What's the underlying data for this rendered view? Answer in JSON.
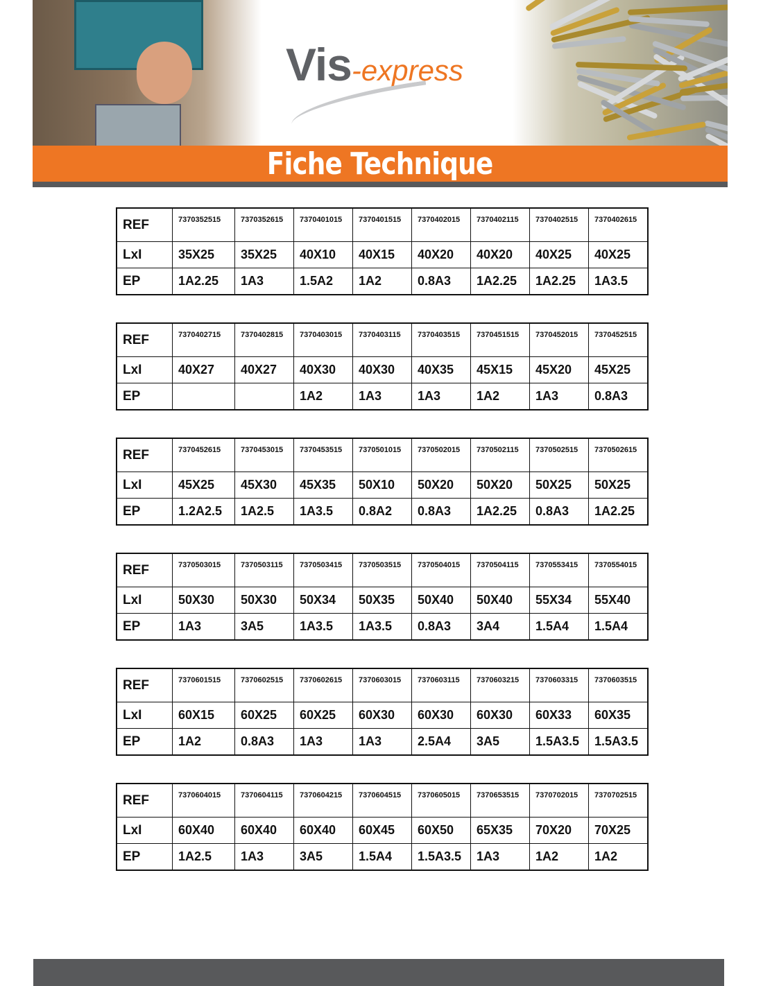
{
  "header": {
    "logo_vis": "Vis",
    "logo_express": "-express",
    "title": "Fiche Technique",
    "colors": {
      "orange": "#ee7623",
      "grey": "#58595b"
    }
  },
  "row_labels": [
    "REF",
    "LxI",
    "EP"
  ],
  "tables": [
    {
      "ref": [
        "7370352515",
        "7370352615",
        "7370401015",
        "7370401515",
        "7370402015",
        "7370402115",
        "7370402515",
        "7370402615"
      ],
      "lxl": [
        "35X25",
        "35X25",
        "40X10",
        "40X15",
        "40X20",
        "40X20",
        "40X25",
        "40X25"
      ],
      "ep": [
        "1A2.25",
        "1A3",
        "1.5A2",
        "1A2",
        "0.8A3",
        "1A2.25",
        "1A2.25",
        "1A3.5"
      ]
    },
    {
      "ref": [
        "7370402715",
        "7370402815",
        "7370403015",
        "7370403115",
        "7370403515",
        "7370451515",
        "7370452015",
        "7370452515"
      ],
      "lxl": [
        "40X27",
        "40X27",
        "40X30",
        "40X30",
        "40X35",
        "45X15",
        "45X20",
        "45X25"
      ],
      "ep": [
        "",
        "",
        "1A2",
        "1A3",
        "1A3",
        "1A2",
        "1A3",
        "0.8A3"
      ]
    },
    {
      "ref": [
        "7370452615",
        "7370453015",
        "7370453515",
        "7370501015",
        "7370502015",
        "7370502115",
        "7370502515",
        "7370502615"
      ],
      "lxl": [
        "45X25",
        "45X30",
        "45X35",
        "50X10",
        "50X20",
        "50X20",
        "50X25",
        "50X25"
      ],
      "ep": [
        "1.2A2.5",
        "1A2.5",
        "1A3.5",
        "0.8A2",
        "0.8A3",
        "1A2.25",
        "0.8A3",
        "1A2.25"
      ]
    },
    {
      "ref": [
        "7370503015",
        "7370503115",
        "7370503415",
        "7370503515",
        "7370504015",
        "7370504115",
        "7370553415",
        "7370554015"
      ],
      "lxl": [
        "50X30",
        "50X30",
        "50X34",
        "50X35",
        "50X40",
        "50X40",
        "55X34",
        "55X40"
      ],
      "ep": [
        "1A3",
        "3A5",
        "1A3.5",
        "1A3.5",
        "0.8A3",
        "3A4",
        "1.5A4",
        "1.5A4"
      ]
    },
    {
      "ref": [
        "7370601515",
        "7370602515",
        "7370602615",
        "7370603015",
        "7370603115",
        "7370603215",
        "7370603315",
        "7370603515"
      ],
      "lxl": [
        "60X15",
        "60X25",
        "60X25",
        "60X30",
        "60X30",
        "60X30",
        "60X33",
        "60X35"
      ],
      "ep": [
        "1A2",
        "0.8A3",
        "1A3",
        "1A3",
        "2.5A4",
        "3A5",
        "1.5A3.5",
        "1.5A3.5"
      ]
    },
    {
      "ref": [
        "7370604015",
        "7370604115",
        "7370604215",
        "7370604515",
        "7370605015",
        "7370653515",
        "7370702015",
        "7370702515"
      ],
      "lxl": [
        "60X40",
        "60X40",
        "60X40",
        "60X45",
        "60X50",
        "65X35",
        "70X20",
        "70X25"
      ],
      "ep": [
        "1A2.5",
        "1A3",
        "3A5",
        "1.5A4",
        "1.5A3.5",
        "1A3",
        "1A2",
        "1A2"
      ]
    }
  ]
}
